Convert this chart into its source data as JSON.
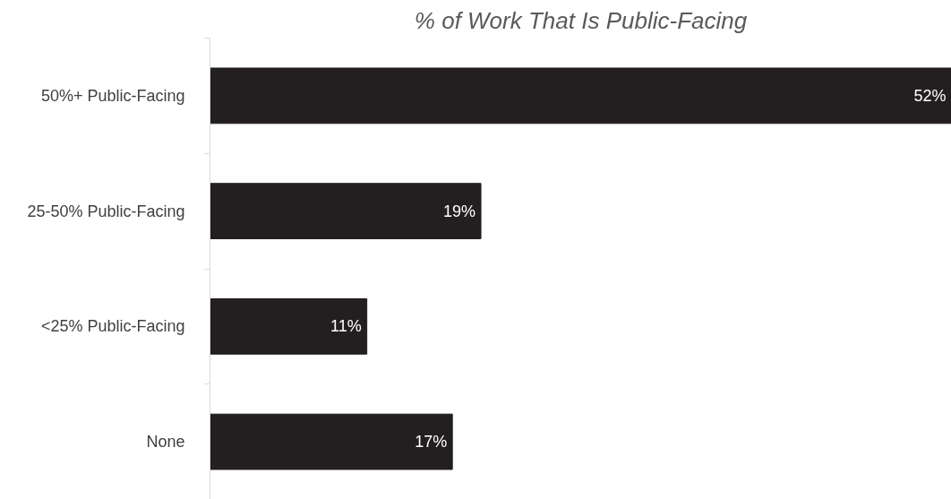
{
  "chart_data": {
    "type": "bar",
    "orientation": "horizontal",
    "title": "% of Work That Is Public-Facing",
    "categories": [
      "50%+ Public-Facing",
      "25-50% Public-Facing",
      "<25% Public-Facing",
      "None"
    ],
    "values": [
      52,
      19,
      11,
      17
    ],
    "value_labels": [
      "52%",
      "19%",
      "11%",
      "17%"
    ],
    "color": "#231f20",
    "xlim": [
      0,
      52
    ],
    "grid": false
  }
}
